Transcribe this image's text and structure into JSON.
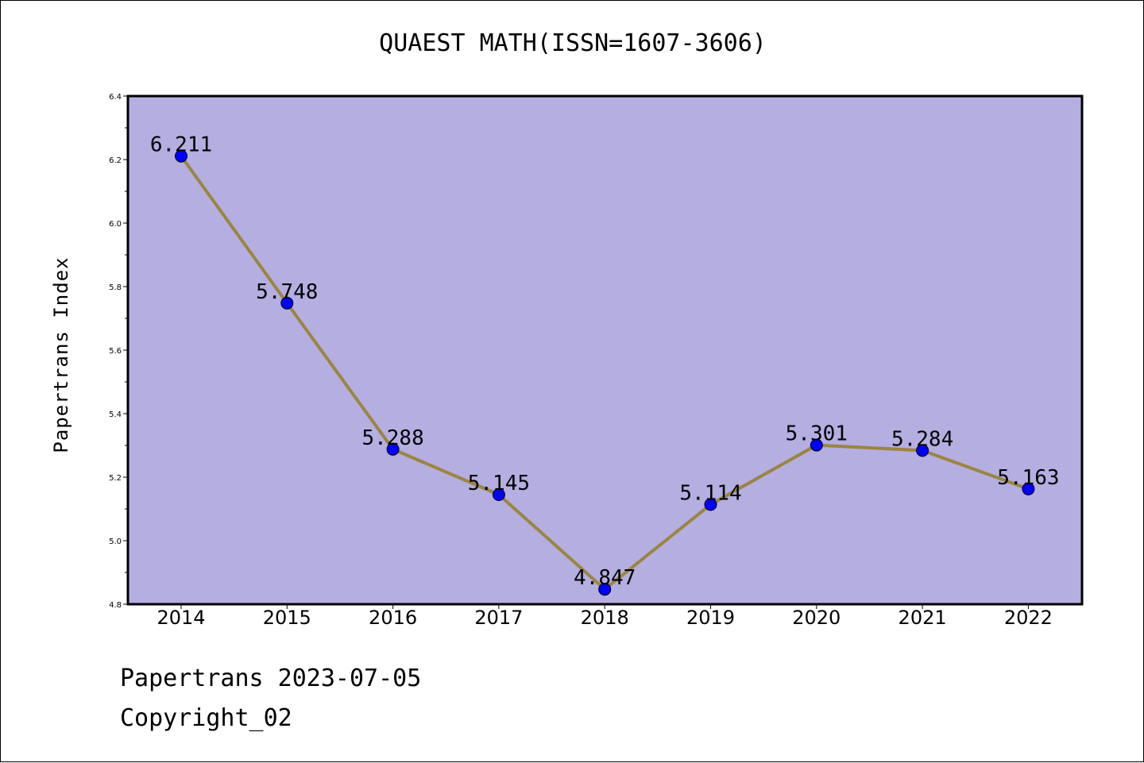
{
  "title": "QUAEST MATH(ISSN=1607-3606)",
  "footer": {
    "line1": "Papertrans 2023-07-05",
    "line2": "Copyright_02"
  },
  "chart_data": {
    "type": "line",
    "title": "QUAEST MATH(ISSN=1607-3606)",
    "xlabel": "",
    "ylabel": "Papertrans Index",
    "x": [
      "2014",
      "2015",
      "2016",
      "2017",
      "2018",
      "2019",
      "2020",
      "2021",
      "2022"
    ],
    "series": [
      {
        "values": [
          6.211,
          5.748,
          5.288,
          5.145,
          4.847,
          5.114,
          5.301,
          5.284,
          5.163
        ],
        "labels": [
          "6.211",
          "5.748",
          "5.288",
          "5.145",
          "4.847",
          "5.114",
          "5.301",
          "5.284",
          "5.163"
        ]
      }
    ],
    "ylim": [
      4.8,
      6.4
    ],
    "yticks": [
      "4.8",
      "5.0",
      "5.2",
      "5.4",
      "5.6",
      "5.8",
      "6.0",
      "6.2",
      "6.4"
    ],
    "grid": false,
    "colors": {
      "plot_background": "#b4aee1",
      "line": "#9b8540",
      "marker": "#0000ff"
    }
  }
}
